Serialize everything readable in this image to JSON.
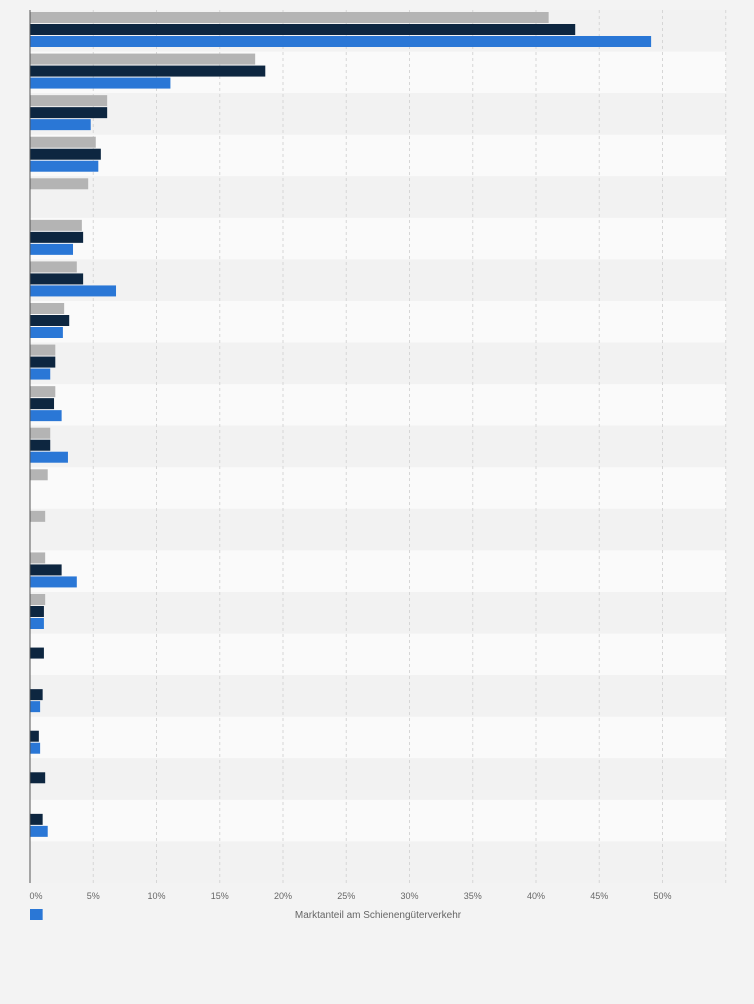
{
  "chart_data": {
    "type": "bar",
    "orientation": "horizontal",
    "xlabel": "Marktanteil am Schienengüterverkehr",
    "ylabel": "",
    "xlim": [
      0,
      55
    ],
    "x_ticks": [
      "0%",
      "5%",
      "10%",
      "15%",
      "20%",
      "25%",
      "30%",
      "35%",
      "40%",
      "45%",
      "50%"
    ],
    "grid": true,
    "legend": "none",
    "categories": [
      "",
      "",
      "",
      "",
      "",
      "",
      "",
      "",
      "",
      "",
      "",
      "",
      "",
      "",
      "",
      "",
      "",
      "",
      "",
      "",
      "",
      ""
    ],
    "series": [
      {
        "color": "#b4b4b4",
        "values": [
          41,
          17.8,
          6.1,
          5.2,
          4.6,
          4.1,
          3.7,
          2.7,
          2.0,
          2.0,
          1.6,
          1.4,
          1.2,
          1.2,
          1.2,
          null,
          null,
          null,
          null,
          null,
          null,
          null
        ]
      },
      {
        "color": "#0d2640",
        "values": [
          43.1,
          18.6,
          6.1,
          5.6,
          null,
          4.2,
          4.2,
          3.1,
          2.0,
          1.9,
          1.6,
          null,
          null,
          2.5,
          1.1,
          1.1,
          1.0,
          0.7,
          1.2,
          1.0,
          null,
          null
        ]
      },
      {
        "color": "#2a77d6",
        "values": [
          49.1,
          11.1,
          4.8,
          5.4,
          null,
          3.4,
          6.8,
          2.6,
          1.6,
          2.5,
          3.0,
          null,
          null,
          3.7,
          1.1,
          null,
          0.8,
          0.8,
          null,
          1.4,
          null,
          1.0
        ]
      }
    ]
  }
}
